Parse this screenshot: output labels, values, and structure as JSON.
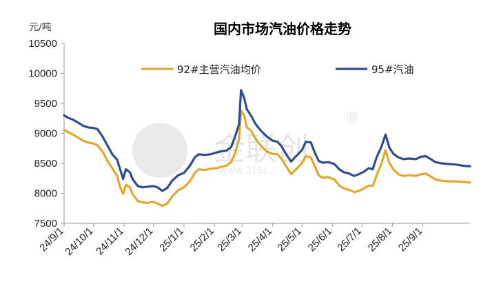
{
  "chart_data": {
    "type": "line",
    "title": "国内市场汽油价格走势",
    "ylabel": "元/吨",
    "ylim": [
      7500,
      10500
    ],
    "yticks": [
      7500,
      8000,
      8500,
      9000,
      9500,
      10000,
      10500
    ],
    "xlim": [
      "2024-09-01",
      "2025-10-19"
    ],
    "xticks": [
      {
        "date": "2024-09-01",
        "label": "24/9/1"
      },
      {
        "date": "2024-10-01",
        "label": "24/10/1"
      },
      {
        "date": "2024-11-01",
        "label": "24/11/1"
      },
      {
        "date": "2024-12-01",
        "label": "24/12/1"
      },
      {
        "date": "2025-01-01",
        "label": "25/1/1"
      },
      {
        "date": "2025-02-01",
        "label": "25/2/1"
      },
      {
        "date": "2025-03-01",
        "label": "25/3/1"
      },
      {
        "date": "2025-04-01",
        "label": "25/4/1"
      },
      {
        "date": "2025-05-01",
        "label": "25/5/1"
      },
      {
        "date": "2025-06-01",
        "label": "25/6/1"
      },
      {
        "date": "2025-07-01",
        "label": "25/7/1"
      },
      {
        "date": "2025-08-01",
        "label": "25/8/1"
      },
      {
        "date": "2025-09-01",
        "label": "25/9/1"
      }
    ],
    "grid": false,
    "legend_position": "top",
    "series": [
      {
        "name": "92#主营汽油均价",
        "color": "#E3A72F",
        "points": [
          [
            "2024-09-01",
            9060
          ],
          [
            "2024-09-05",
            9020
          ],
          [
            "2024-09-10",
            8980
          ],
          [
            "2024-09-15",
            8930
          ],
          [
            "2024-09-20",
            8880
          ],
          [
            "2024-09-25",
            8850
          ],
          [
            "2024-10-01",
            8830
          ],
          [
            "2024-10-05",
            8800
          ],
          [
            "2024-10-10",
            8700
          ],
          [
            "2024-10-15",
            8540
          ],
          [
            "2024-10-20",
            8420
          ],
          [
            "2024-10-25",
            8290
          ],
          [
            "2024-10-28",
            8100
          ],
          [
            "2024-10-31",
            7990
          ],
          [
            "2024-11-03",
            8140
          ],
          [
            "2024-11-07",
            8100
          ],
          [
            "2024-11-10",
            7980
          ],
          [
            "2024-11-15",
            7870
          ],
          [
            "2024-11-20",
            7850
          ],
          [
            "2024-11-25",
            7840
          ],
          [
            "2024-12-01",
            7860
          ],
          [
            "2024-12-05",
            7830
          ],
          [
            "2024-12-10",
            7790
          ],
          [
            "2024-12-15",
            7830
          ],
          [
            "2024-12-20",
            7950
          ],
          [
            "2024-12-26",
            8050
          ],
          [
            "2025-01-01",
            8100
          ],
          [
            "2025-01-07",
            8200
          ],
          [
            "2025-01-12",
            8340
          ],
          [
            "2025-01-16",
            8400
          ],
          [
            "2025-01-22",
            8390
          ],
          [
            "2025-01-28",
            8410
          ],
          [
            "2025-02-03",
            8420
          ],
          [
            "2025-02-08",
            8440
          ],
          [
            "2025-02-13",
            8460
          ],
          [
            "2025-02-18",
            8520
          ],
          [
            "2025-02-22",
            8680
          ],
          [
            "2025-02-26",
            8900
          ],
          [
            "2025-02-28",
            9380
          ],
          [
            "2025-03-03",
            9300
          ],
          [
            "2025-03-06",
            9100
          ],
          [
            "2025-03-10",
            9050
          ],
          [
            "2025-03-15",
            8900
          ],
          [
            "2025-03-20",
            8800
          ],
          [
            "2025-03-26",
            8700
          ],
          [
            "2025-04-01",
            8660
          ],
          [
            "2025-04-06",
            8650
          ],
          [
            "2025-04-10",
            8580
          ],
          [
            "2025-04-15",
            8450
          ],
          [
            "2025-04-20",
            8320
          ],
          [
            "2025-04-25",
            8400
          ],
          [
            "2025-05-01",
            8500
          ],
          [
            "2025-05-05",
            8620
          ],
          [
            "2025-05-10",
            8600
          ],
          [
            "2025-05-14",
            8460
          ],
          [
            "2025-05-18",
            8300
          ],
          [
            "2025-05-22",
            8260
          ],
          [
            "2025-05-28",
            8270
          ],
          [
            "2025-06-03",
            8230
          ],
          [
            "2025-06-08",
            8130
          ],
          [
            "2025-06-13",
            8080
          ],
          [
            "2025-06-18",
            8060
          ],
          [
            "2025-06-23",
            8020
          ],
          [
            "2025-06-28",
            8040
          ],
          [
            "2025-07-03",
            8080
          ],
          [
            "2025-07-08",
            8130
          ],
          [
            "2025-07-12",
            8120
          ],
          [
            "2025-07-16",
            8300
          ],
          [
            "2025-07-21",
            8500
          ],
          [
            "2025-07-25",
            8720
          ],
          [
            "2025-07-29",
            8500
          ],
          [
            "2025-08-02",
            8400
          ],
          [
            "2025-08-07",
            8320
          ],
          [
            "2025-08-12",
            8290
          ],
          [
            "2025-08-18",
            8300
          ],
          [
            "2025-08-25",
            8290
          ],
          [
            "2025-08-30",
            8320
          ],
          [
            "2025-09-04",
            8330
          ],
          [
            "2025-09-08",
            8290
          ],
          [
            "2025-09-14",
            8230
          ],
          [
            "2025-09-20",
            8210
          ],
          [
            "2025-09-26",
            8200
          ],
          [
            "2025-10-04",
            8200
          ],
          [
            "2025-10-12",
            8190
          ],
          [
            "2025-10-19",
            8180
          ]
        ]
      },
      {
        "name": "95#汽油",
        "color": "#2E4C8F",
        "points": [
          [
            "2024-09-01",
            9300
          ],
          [
            "2024-09-05",
            9260
          ],
          [
            "2024-09-10",
            9230
          ],
          [
            "2024-09-15",
            9180
          ],
          [
            "2024-09-20",
            9130
          ],
          [
            "2024-09-25",
            9100
          ],
          [
            "2024-10-01",
            9090
          ],
          [
            "2024-10-05",
            9070
          ],
          [
            "2024-10-10",
            8950
          ],
          [
            "2024-10-15",
            8800
          ],
          [
            "2024-10-20",
            8650
          ],
          [
            "2024-10-25",
            8560
          ],
          [
            "2024-10-28",
            8400
          ],
          [
            "2024-10-31",
            8240
          ],
          [
            "2024-11-03",
            8400
          ],
          [
            "2024-11-07",
            8350
          ],
          [
            "2024-11-10",
            8230
          ],
          [
            "2024-11-15",
            8120
          ],
          [
            "2024-11-20",
            8100
          ],
          [
            "2024-11-25",
            8110
          ],
          [
            "2024-12-01",
            8120
          ],
          [
            "2024-12-05",
            8100
          ],
          [
            "2024-12-10",
            8040
          ],
          [
            "2024-12-15",
            8090
          ],
          [
            "2024-12-20",
            8210
          ],
          [
            "2024-12-26",
            8300
          ],
          [
            "2025-01-01",
            8340
          ],
          [
            "2025-01-07",
            8460
          ],
          [
            "2025-01-12",
            8600
          ],
          [
            "2025-01-16",
            8650
          ],
          [
            "2025-01-22",
            8640
          ],
          [
            "2025-01-28",
            8650
          ],
          [
            "2025-02-03",
            8680
          ],
          [
            "2025-02-08",
            8700
          ],
          [
            "2025-02-13",
            8710
          ],
          [
            "2025-02-18",
            8770
          ],
          [
            "2025-02-22",
            8950
          ],
          [
            "2025-02-26",
            9150
          ],
          [
            "2025-02-28",
            9720
          ],
          [
            "2025-03-03",
            9600
          ],
          [
            "2025-03-06",
            9400
          ],
          [
            "2025-03-10",
            9300
          ],
          [
            "2025-03-15",
            9150
          ],
          [
            "2025-03-20",
            9050
          ],
          [
            "2025-03-26",
            8950
          ],
          [
            "2025-04-01",
            8880
          ],
          [
            "2025-04-06",
            8860
          ],
          [
            "2025-04-10",
            8790
          ],
          [
            "2025-04-15",
            8650
          ],
          [
            "2025-04-20",
            8530
          ],
          [
            "2025-04-25",
            8620
          ],
          [
            "2025-05-01",
            8720
          ],
          [
            "2025-05-05",
            8860
          ],
          [
            "2025-05-10",
            8850
          ],
          [
            "2025-05-14",
            8680
          ],
          [
            "2025-05-18",
            8540
          ],
          [
            "2025-05-22",
            8510
          ],
          [
            "2025-05-28",
            8520
          ],
          [
            "2025-06-03",
            8490
          ],
          [
            "2025-06-08",
            8400
          ],
          [
            "2025-06-13",
            8350
          ],
          [
            "2025-06-18",
            8330
          ],
          [
            "2025-06-23",
            8290
          ],
          [
            "2025-06-28",
            8320
          ],
          [
            "2025-07-03",
            8360
          ],
          [
            "2025-07-08",
            8420
          ],
          [
            "2025-07-12",
            8400
          ],
          [
            "2025-07-16",
            8600
          ],
          [
            "2025-07-21",
            8780
          ],
          [
            "2025-07-25",
            8980
          ],
          [
            "2025-07-29",
            8760
          ],
          [
            "2025-08-02",
            8660
          ],
          [
            "2025-08-07",
            8600
          ],
          [
            "2025-08-12",
            8570
          ],
          [
            "2025-08-18",
            8580
          ],
          [
            "2025-08-25",
            8570
          ],
          [
            "2025-08-30",
            8610
          ],
          [
            "2025-09-04",
            8620
          ],
          [
            "2025-09-08",
            8580
          ],
          [
            "2025-09-14",
            8520
          ],
          [
            "2025-09-20",
            8500
          ],
          [
            "2025-09-26",
            8490
          ],
          [
            "2025-10-04",
            8480
          ],
          [
            "2025-10-12",
            8460
          ],
          [
            "2025-10-19",
            8450
          ]
        ]
      }
    ]
  },
  "watermark": {
    "brand": "金联创",
    "registered": "®",
    "site": "www.315i..."
  }
}
